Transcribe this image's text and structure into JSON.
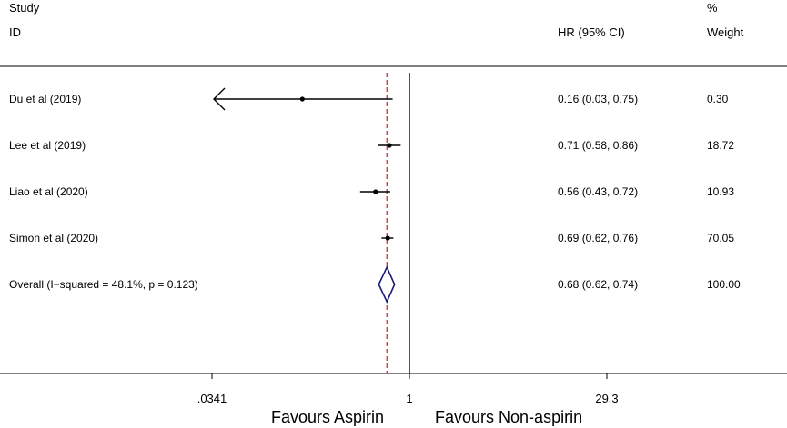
{
  "chart_data": {
    "type": "forest",
    "header": {
      "study_line1": "Study",
      "study_line2": "ID",
      "effect_label": "HR (95% CI)",
      "weight_line1": "%",
      "weight_line2": "Weight"
    },
    "studies": [
      {
        "label": "Du et al (2019)",
        "hr": 0.16,
        "lower": 0.03,
        "upper": 0.75,
        "ci_text": "0.16 (0.03, 0.75)",
        "weight_text": "0.30",
        "weight": 0.3,
        "arrow_left": true
      },
      {
        "label": "Lee et al (2019)",
        "hr": 0.71,
        "lower": 0.58,
        "upper": 0.86,
        "ci_text": "0.71 (0.58, 0.86)",
        "weight_text": "18.72",
        "weight": 18.72
      },
      {
        "label": "Liao et al (2020)",
        "hr": 0.56,
        "lower": 0.43,
        "upper": 0.72,
        "ci_text": "0.56 (0.43, 0.72)",
        "weight_text": "10.93",
        "weight": 10.93
      },
      {
        "label": "Simon et al (2020)",
        "hr": 0.69,
        "lower": 0.62,
        "upper": 0.76,
        "ci_text": "0.69 (0.62, 0.76)",
        "weight_text": "70.05",
        "weight": 70.05
      }
    ],
    "overall": {
      "label": "Overall  (I−squared = 48.1%, p = 0.123)",
      "hr": 0.68,
      "lower": 0.62,
      "upper": 0.74,
      "ci_text": "0.68 (0.62, 0.74)",
      "weight_text": "100.00"
    },
    "x_scale": "log",
    "xlim": [
      0.0341,
      29.3
    ],
    "ticks": [
      {
        "value": 0.0341,
        "label": ".0341"
      },
      {
        "value": 1,
        "label": "1"
      },
      {
        "value": 29.3,
        "label": "29.3"
      }
    ],
    "null_line": 1,
    "favours_left": "Favours Aspirin",
    "favours_right": "Favours Non-aspirin",
    "colors": {
      "overall_diamond": "#1a1a7a",
      "overall_line": "#cc3333",
      "marks": "#000000"
    }
  }
}
